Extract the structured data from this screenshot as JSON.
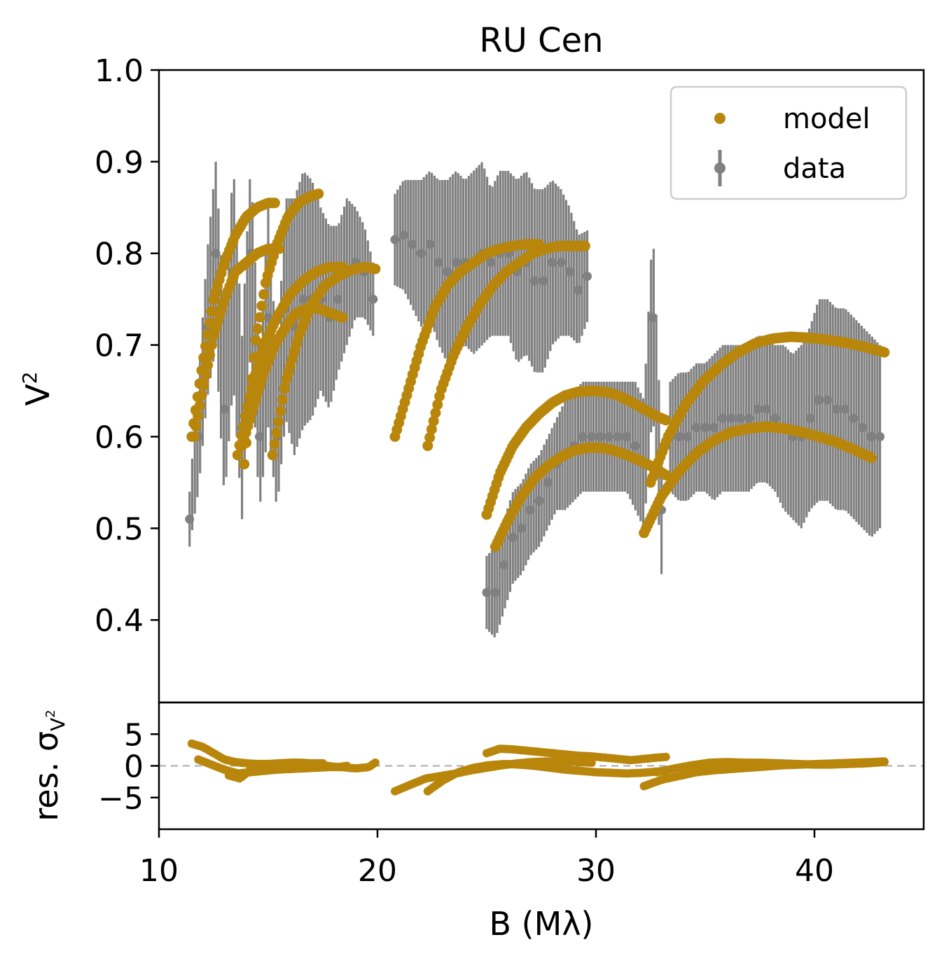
{
  "chart_data": {
    "type": "scatter",
    "title": "RU Cen",
    "xlabel": "B (Mλ)",
    "xlim": [
      10,
      45
    ],
    "xticks": [
      "10",
      "20",
      "30",
      "40"
    ],
    "xtick_values": [
      10,
      20,
      30,
      40
    ],
    "top_panel": {
      "ylabel": "V²",
      "ylim": [
        0.31,
        1.0
      ],
      "yticks": [
        "0.4",
        "0.5",
        "0.6",
        "0.7",
        "0.8",
        "0.9",
        "1.0"
      ],
      "ytick_values": [
        0.4,
        0.5,
        0.6,
        0.7,
        0.8,
        0.9,
        1.0
      ],
      "legend": {
        "position": "upper right",
        "entries": [
          "model",
          "data"
        ]
      },
      "data_error_bands": [
        {
          "x": [
            11.4,
            11.8,
            12.2,
            12.6,
            13.0,
            13.4,
            13.8,
            14.2,
            14.6,
            15.0,
            15.4,
            15.8,
            16.2,
            16.6,
            17.0,
            17.4,
            17.8,
            18.2,
            18.6,
            19.0,
            19.4,
            19.8
          ],
          "y": [
            0.51,
            0.6,
            0.72,
            0.8,
            0.63,
            0.78,
            0.61,
            0.8,
            0.6,
            0.73,
            0.6,
            0.74,
            0.72,
            0.75,
            0.75,
            0.75,
            0.73,
            0.75,
            0.78,
            0.79,
            0.78,
            0.75
          ],
          "err": [
            0.03,
            0.06,
            0.08,
            0.1,
            0.1,
            0.12,
            0.1,
            0.1,
            0.08,
            0.12,
            0.08,
            0.12,
            0.14,
            0.14,
            0.13,
            0.1,
            0.1,
            0.08,
            0.08,
            0.06,
            0.05,
            0.04
          ]
        },
        {
          "x": [
            20.8,
            21.2,
            21.6,
            22.0,
            22.4,
            22.8,
            23.2,
            23.6,
            24.0,
            24.4,
            24.8,
            25.2,
            25.6,
            26.0,
            26.4,
            26.8,
            27.2,
            27.6,
            28.0,
            28.4,
            28.8,
            29.2,
            29.6
          ],
          "y": [
            0.815,
            0.82,
            0.81,
            0.8,
            0.81,
            0.79,
            0.78,
            0.79,
            0.79,
            0.79,
            0.8,
            0.79,
            0.8,
            0.8,
            0.78,
            0.79,
            0.77,
            0.77,
            0.79,
            0.79,
            0.78,
            0.76,
            0.775
          ],
          "err": [
            0.05,
            0.06,
            0.07,
            0.08,
            0.08,
            0.09,
            0.1,
            0.1,
            0.09,
            0.1,
            0.1,
            0.08,
            0.09,
            0.09,
            0.1,
            0.1,
            0.1,
            0.1,
            0.09,
            0.08,
            0.07,
            0.06,
            0.05
          ]
        },
        {
          "x": [
            25.0,
            25.4,
            25.8,
            26.2,
            26.6,
            27.0,
            27.4,
            27.8,
            28.2,
            28.6,
            29.0,
            29.4,
            29.8,
            30.2,
            30.6,
            31.0,
            31.4,
            31.8,
            32.2,
            32.6,
            33.0
          ],
          "y": [
            0.43,
            0.43,
            0.46,
            0.49,
            0.5,
            0.52,
            0.53,
            0.55,
            0.57,
            0.58,
            0.59,
            0.6,
            0.6,
            0.6,
            0.6,
            0.6,
            0.6,
            0.59,
            0.57,
            0.73,
            0.52
          ],
          "err": [
            0.04,
            0.05,
            0.05,
            0.05,
            0.05,
            0.05,
            0.05,
            0.05,
            0.05,
            0.06,
            0.06,
            0.06,
            0.06,
            0.06,
            0.06,
            0.06,
            0.06,
            0.07,
            0.07,
            0.1,
            0.07
          ]
        },
        {
          "x": [
            33.4,
            33.8,
            34.2,
            34.6,
            35.0,
            35.4,
            35.8,
            36.2,
            36.6,
            37.0,
            37.4,
            37.8,
            38.2,
            38.6,
            39.0,
            39.4,
            39.8,
            40.2,
            40.6,
            41.0,
            41.4,
            41.8,
            42.2,
            42.6,
            43.0
          ],
          "y": [
            0.6,
            0.6,
            0.6,
            0.61,
            0.61,
            0.61,
            0.62,
            0.62,
            0.62,
            0.62,
            0.63,
            0.63,
            0.62,
            0.61,
            0.6,
            0.6,
            0.62,
            0.64,
            0.64,
            0.63,
            0.63,
            0.62,
            0.61,
            0.6,
            0.6
          ],
          "err": [
            0.06,
            0.07,
            0.07,
            0.07,
            0.07,
            0.08,
            0.08,
            0.08,
            0.08,
            0.08,
            0.08,
            0.08,
            0.08,
            0.09,
            0.09,
            0.1,
            0.1,
            0.11,
            0.11,
            0.11,
            0.11,
            0.11,
            0.11,
            0.11,
            0.1
          ]
        }
      ],
      "model_series": [
        {
          "name": "model",
          "x": [
            11.5,
            12.0,
            12.5,
            13.0,
            13.5,
            14.0,
            14.5,
            15.0,
            15.3
          ],
          "y": [
            0.6,
            0.68,
            0.75,
            0.79,
            0.82,
            0.84,
            0.85,
            0.855,
            0.855
          ]
        },
        {
          "name": "model",
          "x": [
            11.6,
            12.0,
            12.5,
            13.0,
            13.5,
            14.0,
            14.5,
            15.0,
            15.5
          ],
          "y": [
            0.6,
            0.65,
            0.71,
            0.75,
            0.78,
            0.79,
            0.8,
            0.805,
            0.805
          ]
        },
        {
          "name": "model",
          "x": [
            13.9,
            14.4,
            14.9,
            15.4,
            15.9,
            16.4,
            16.9,
            17.3
          ],
          "y": [
            0.57,
            0.7,
            0.77,
            0.81,
            0.84,
            0.855,
            0.862,
            0.865
          ]
        },
        {
          "name": "model",
          "x": [
            13.6,
            14.2,
            14.8,
            15.4,
            16.0,
            16.6,
            17.2,
            17.8,
            18.4
          ],
          "y": [
            0.58,
            0.65,
            0.7,
            0.73,
            0.755,
            0.77,
            0.78,
            0.785,
            0.785
          ]
        },
        {
          "name": "model",
          "x": [
            13.8,
            14.3,
            14.8,
            15.3,
            15.8,
            16.3,
            16.8,
            17.3,
            17.8,
            18.4
          ],
          "y": [
            0.59,
            0.63,
            0.67,
            0.7,
            0.72,
            0.735,
            0.74,
            0.74,
            0.735,
            0.73
          ]
        },
        {
          "name": "model",
          "x": [
            15.2,
            15.8,
            16.4,
            17.0,
            17.6,
            18.2,
            18.8,
            19.4,
            19.9
          ],
          "y": [
            0.58,
            0.66,
            0.71,
            0.745,
            0.765,
            0.775,
            0.782,
            0.785,
            0.783
          ]
        },
        {
          "name": "model",
          "x": [
            20.8,
            21.4,
            22.0,
            22.6,
            23.2,
            23.8,
            24.4,
            25.0,
            25.6,
            26.2,
            26.8,
            27.4
          ],
          "y": [
            0.6,
            0.65,
            0.7,
            0.74,
            0.765,
            0.78,
            0.79,
            0.8,
            0.805,
            0.808,
            0.81,
            0.81
          ]
        },
        {
          "name": "model",
          "x": [
            22.3,
            22.9,
            23.5,
            24.1,
            24.7,
            25.3,
            25.9,
            26.5,
            27.1,
            27.7,
            28.3,
            28.9,
            29.5
          ],
          "y": [
            0.59,
            0.65,
            0.69,
            0.72,
            0.745,
            0.765,
            0.78,
            0.79,
            0.8,
            0.805,
            0.808,
            0.808,
            0.808
          ]
        },
        {
          "name": "model",
          "x": [
            25.0,
            25.6,
            26.2,
            26.8,
            27.4,
            28.0,
            28.6,
            29.2,
            29.8,
            30.4,
            31.0,
            31.6,
            32.2,
            32.8,
            33.2
          ],
          "y": [
            0.515,
            0.56,
            0.59,
            0.61,
            0.625,
            0.637,
            0.645,
            0.649,
            0.65,
            0.649,
            0.645,
            0.638,
            0.63,
            0.622,
            0.618
          ]
        },
        {
          "name": "model",
          "x": [
            25.4,
            26.0,
            26.6,
            27.2,
            27.8,
            28.4,
            29.0,
            29.6,
            30.2,
            30.8,
            31.4,
            32.0,
            32.6,
            33.2
          ],
          "y": [
            0.48,
            0.51,
            0.535,
            0.555,
            0.568,
            0.578,
            0.585,
            0.588,
            0.588,
            0.585,
            0.58,
            0.574,
            0.567,
            0.558
          ]
        },
        {
          "name": "model",
          "x": [
            32.5,
            33.3,
            34.1,
            34.9,
            35.7,
            36.5,
            37.3,
            38.1,
            38.9,
            39.7,
            40.5,
            41.3,
            42.1,
            42.9,
            43.2
          ],
          "y": [
            0.55,
            0.6,
            0.635,
            0.66,
            0.678,
            0.692,
            0.702,
            0.707,
            0.709,
            0.708,
            0.706,
            0.703,
            0.699,
            0.694,
            0.692
          ]
        },
        {
          "name": "model",
          "x": [
            32.2,
            33.0,
            33.8,
            34.6,
            35.4,
            36.2,
            37.0,
            37.8,
            38.6,
            39.4,
            40.2,
            41.0,
            41.8,
            42.6
          ],
          "y": [
            0.495,
            0.535,
            0.562,
            0.582,
            0.596,
            0.605,
            0.609,
            0.611,
            0.609,
            0.605,
            0.6,
            0.594,
            0.586,
            0.577
          ]
        }
      ]
    },
    "bottom_panel": {
      "ylabel": "res. σ_V²",
      "ylim": [
        -10,
        10
      ],
      "yticks": [
        "5",
        "0",
        "−5"
      ],
      "ytick_values": [
        5,
        0,
        -5
      ],
      "zero_line": true,
      "residual_series": [
        {
          "x": [
            11.5,
            12.0,
            12.5,
            13.0,
            13.5,
            14.0,
            14.5,
            15.0,
            15.5,
            16.0,
            16.5,
            17.0,
            17.5
          ],
          "y": [
            3.5,
            3.0,
            2.0,
            1.0,
            0.6,
            0.4,
            0.3,
            0.3,
            0.4,
            0.5,
            0.5,
            0.4,
            0.4
          ]
        },
        {
          "x": [
            11.8,
            12.4,
            13.0,
            13.6,
            14.2,
            14.8,
            15.4,
            16.0,
            16.6,
            17.2,
            17.8,
            18.4,
            19.0,
            19.6,
            19.9
          ],
          "y": [
            1.0,
            0.2,
            -0.6,
            -1.2,
            -1.0,
            -0.8,
            -0.6,
            -0.5,
            -0.4,
            -0.3,
            -0.2,
            -0.2,
            -0.4,
            -0.2,
            0.5
          ]
        },
        {
          "x": [
            13.2,
            13.7,
            14.2,
            14.7,
            15.2,
            15.7,
            16.2,
            16.7,
            17.2,
            17.7,
            18.2,
            18.6
          ],
          "y": [
            -1.5,
            -2.0,
            -0.6,
            0.2,
            0.3,
            0.4,
            0.5,
            0.4,
            0.2,
            0.0,
            -0.2,
            0.0
          ]
        },
        {
          "x": [
            20.8,
            21.5,
            22.2,
            22.9,
            23.6,
            24.3,
            25.0,
            25.7,
            26.4,
            27.1,
            27.8,
            28.5,
            29.2,
            29.8
          ],
          "y": [
            -4.0,
            -3.0,
            -2.0,
            -1.6,
            -1.2,
            -0.7,
            -0.3,
            0.1,
            0.4,
            0.6,
            0.7,
            0.7,
            0.6,
            0.5
          ]
        },
        {
          "x": [
            22.3,
            23.0,
            23.7,
            24.4,
            25.1,
            25.8,
            26.5,
            27.2,
            27.9,
            28.6,
            29.3,
            30.0,
            30.7,
            31.4,
            32.1,
            32.8,
            33.2
          ],
          "y": [
            -4.0,
            -2.3,
            -1.0,
            -0.3,
            0.1,
            0.3,
            0.2,
            0.0,
            -0.3,
            -0.6,
            -0.8,
            -1.0,
            -1.1,
            -1.2,
            -1.1,
            -0.9,
            -0.8
          ]
        },
        {
          "x": [
            25.0,
            25.6,
            26.2,
            26.8,
            27.4,
            28.0,
            28.6,
            29.2,
            29.8,
            30.4,
            31.0,
            31.6,
            32.2,
            32.8,
            33.2
          ],
          "y": [
            2.0,
            2.7,
            2.6,
            2.4,
            2.2,
            2.0,
            1.8,
            1.6,
            1.5,
            1.3,
            1.1,
            0.9,
            1.1,
            1.3,
            1.4
          ]
        },
        {
          "x": [
            32.2,
            33.0,
            33.8,
            34.6,
            35.4,
            36.2,
            37.0,
            37.8,
            38.6,
            39.4,
            40.2,
            41.0,
            41.8,
            42.6,
            43.2
          ],
          "y": [
            -3.2,
            -2.2,
            -1.6,
            -1.0,
            -0.7,
            -0.5,
            -0.3,
            -0.1,
            0.1,
            0.2,
            0.3,
            0.4,
            0.5,
            0.6,
            0.7
          ]
        },
        {
          "x": [
            32.8,
            33.6,
            34.4,
            35.2,
            36.0,
            36.8,
            37.6,
            38.4,
            39.2,
            40.0,
            40.8,
            41.6,
            42.4,
            43.2
          ],
          "y": [
            -1.0,
            -0.4,
            0.1,
            0.5,
            0.6,
            0.5,
            0.5,
            0.4,
            0.3,
            0.2,
            0.2,
            0.3,
            0.4,
            0.6
          ]
        }
      ]
    },
    "colors": {
      "model": "#b8860b",
      "data": "#808080",
      "axes": "#000000",
      "zero_line": "#aaaaaa"
    }
  }
}
